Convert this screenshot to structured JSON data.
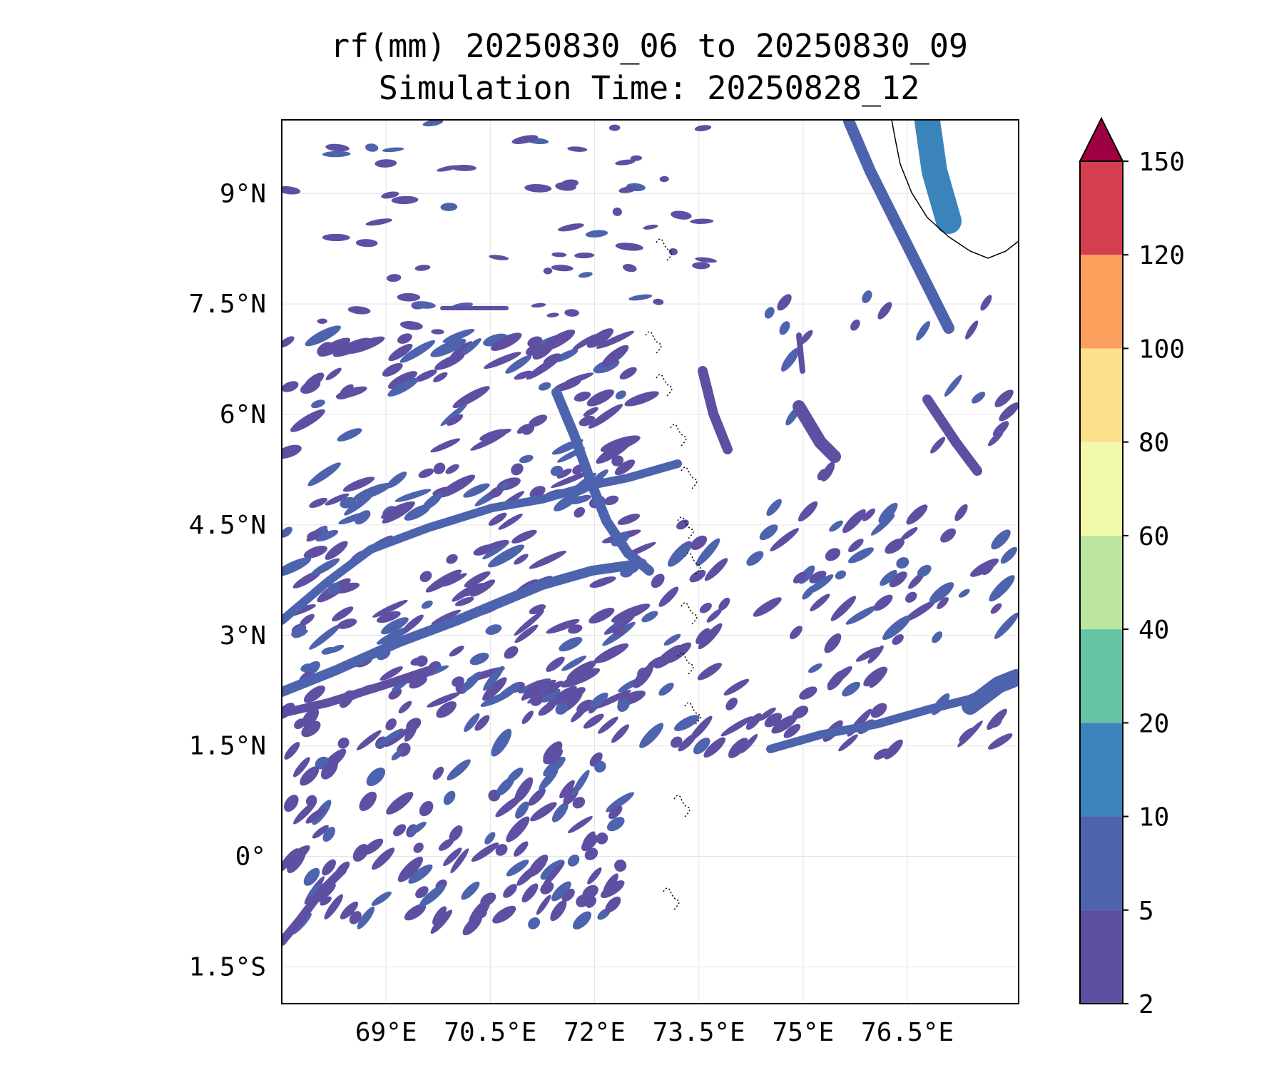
{
  "title": "rf(mm) 20250830_06 to 20250830_09",
  "subtitle": "Simulation Time: 20250828_12",
  "map": {
    "lon_range": [
      67.5,
      78.1
    ],
    "lat_range": [
      -2.0,
      10.0
    ],
    "lon_ticks": [
      {
        "value": 69.0,
        "label": "69°E"
      },
      {
        "value": 70.5,
        "label": "70.5°E"
      },
      {
        "value": 72.0,
        "label": "72°E"
      },
      {
        "value": 73.5,
        "label": "73.5°E"
      },
      {
        "value": 75.0,
        "label": "75°E"
      },
      {
        "value": 76.5,
        "label": "76.5°E"
      }
    ],
    "lat_ticks": [
      {
        "value": 9.0,
        "label": "9°N"
      },
      {
        "value": 7.5,
        "label": "7.5°N"
      },
      {
        "value": 6.0,
        "label": "6°N"
      },
      {
        "value": 4.5,
        "label": "4.5°N"
      },
      {
        "value": 3.0,
        "label": "3°N"
      },
      {
        "value": 1.5,
        "label": "1.5°N"
      },
      {
        "value": 0.0,
        "label": "0°"
      },
      {
        "value": -1.5,
        "label": "1.5°S"
      }
    ],
    "grid": true
  },
  "colorbar": {
    "levels": [
      2,
      5,
      10,
      20,
      40,
      60,
      80,
      100,
      120,
      150
    ],
    "colors": [
      "#5e4fa2",
      "#4d63ae",
      "#3b84bb",
      "#66c2a5",
      "#bce5a0",
      "#f2f9ac",
      "#fde08b",
      "#fca05e",
      "#d53e4f"
    ],
    "extend_max_color": "#9e0142",
    "extend": "max"
  }
}
